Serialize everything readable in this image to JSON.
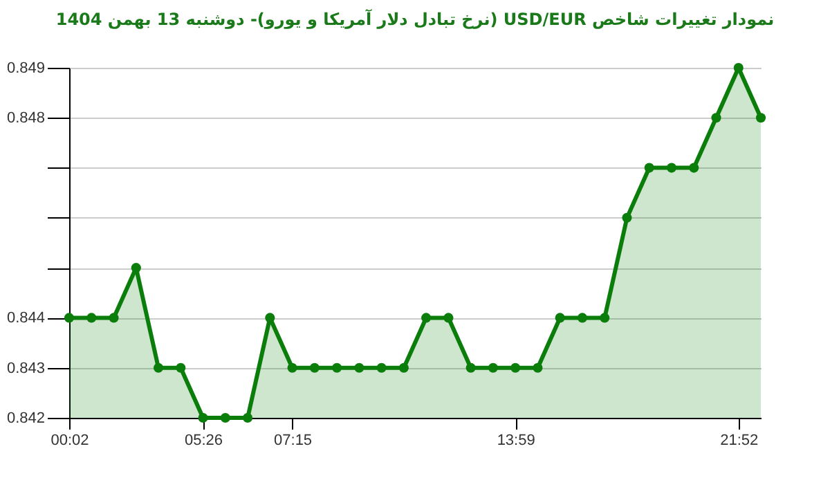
{
  "chart_data": {
    "type": "area",
    "title": "نمودار تغییرات شاخص USD/EUR (نرخ تبادل دلار آمریکا و یورو)- دوشنبه  13 بهمن 1404",
    "categories": [
      "00:02",
      null,
      null,
      null,
      null,
      null,
      "05:26",
      null,
      null,
      null,
      "07:15",
      null,
      null,
      null,
      null,
      null,
      null,
      null,
      null,
      null,
      "13:59",
      null,
      null,
      null,
      null,
      null,
      null,
      null,
      null,
      null,
      "21:52",
      null
    ],
    "series": [
      {
        "color": "#0a7d0a",
        "values": [
          0.844,
          0.844,
          0.844,
          0.845,
          0.843,
          0.843,
          0.842,
          0.842,
          0.842,
          0.844,
          0.843,
          0.843,
          0.843,
          0.843,
          0.843,
          0.843,
          0.844,
          0.844,
          0.843,
          0.843,
          0.843,
          0.843,
          0.844,
          0.844,
          0.844,
          0.846,
          0.847,
          0.847,
          0.847,
          0.848,
          0.849,
          0.848
        ]
      }
    ],
    "ylim": [
      0.842,
      0.849
    ],
    "yticks": [
      0.842,
      0.843,
      0.844,
      {
        "value": 0.845,
        "label": null
      },
      {
        "value": 0.846,
        "label": null
      },
      {
        "value": 0.847,
        "label": null
      },
      0.848,
      0.849
    ],
    "grid": "y",
    "marker": "circle",
    "line_style": "solid"
  }
}
